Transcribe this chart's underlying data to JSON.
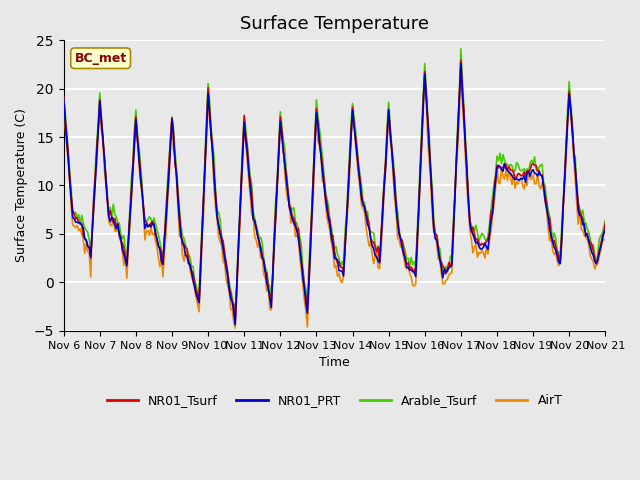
{
  "title": "Surface Temperature",
  "xlabel": "Time",
  "ylabel": "Surface Temperature (C)",
  "ylim": [
    -5,
    25
  ],
  "annotation": "BC_met",
  "legend_labels": [
    "NR01_Tsurf",
    "NR01_PRT",
    "Arable_Tsurf",
    "AirT"
  ],
  "line_colors": [
    "#dd0000",
    "#0000cc",
    "#44cc00",
    "#ee8800"
  ],
  "background_color": "#e8e8e8",
  "plot_bg_color": "#e8e8e8",
  "grid_color": "#ffffff",
  "x_tick_labels": [
    "Nov 6",
    "Nov 7",
    "Nov 8",
    "Nov 9",
    "Nov 10",
    "Nov 11",
    "Nov 12",
    "Nov 13",
    "Nov 14",
    "Nov 15",
    "Nov 16",
    "Nov 17",
    "Nov 18",
    "Nov 19",
    "Nov 20",
    "Nov 21"
  ],
  "x_tick_positions": [
    0,
    24,
    48,
    72,
    96,
    120,
    144,
    168,
    192,
    216,
    240,
    264,
    288,
    312,
    336,
    360
  ]
}
